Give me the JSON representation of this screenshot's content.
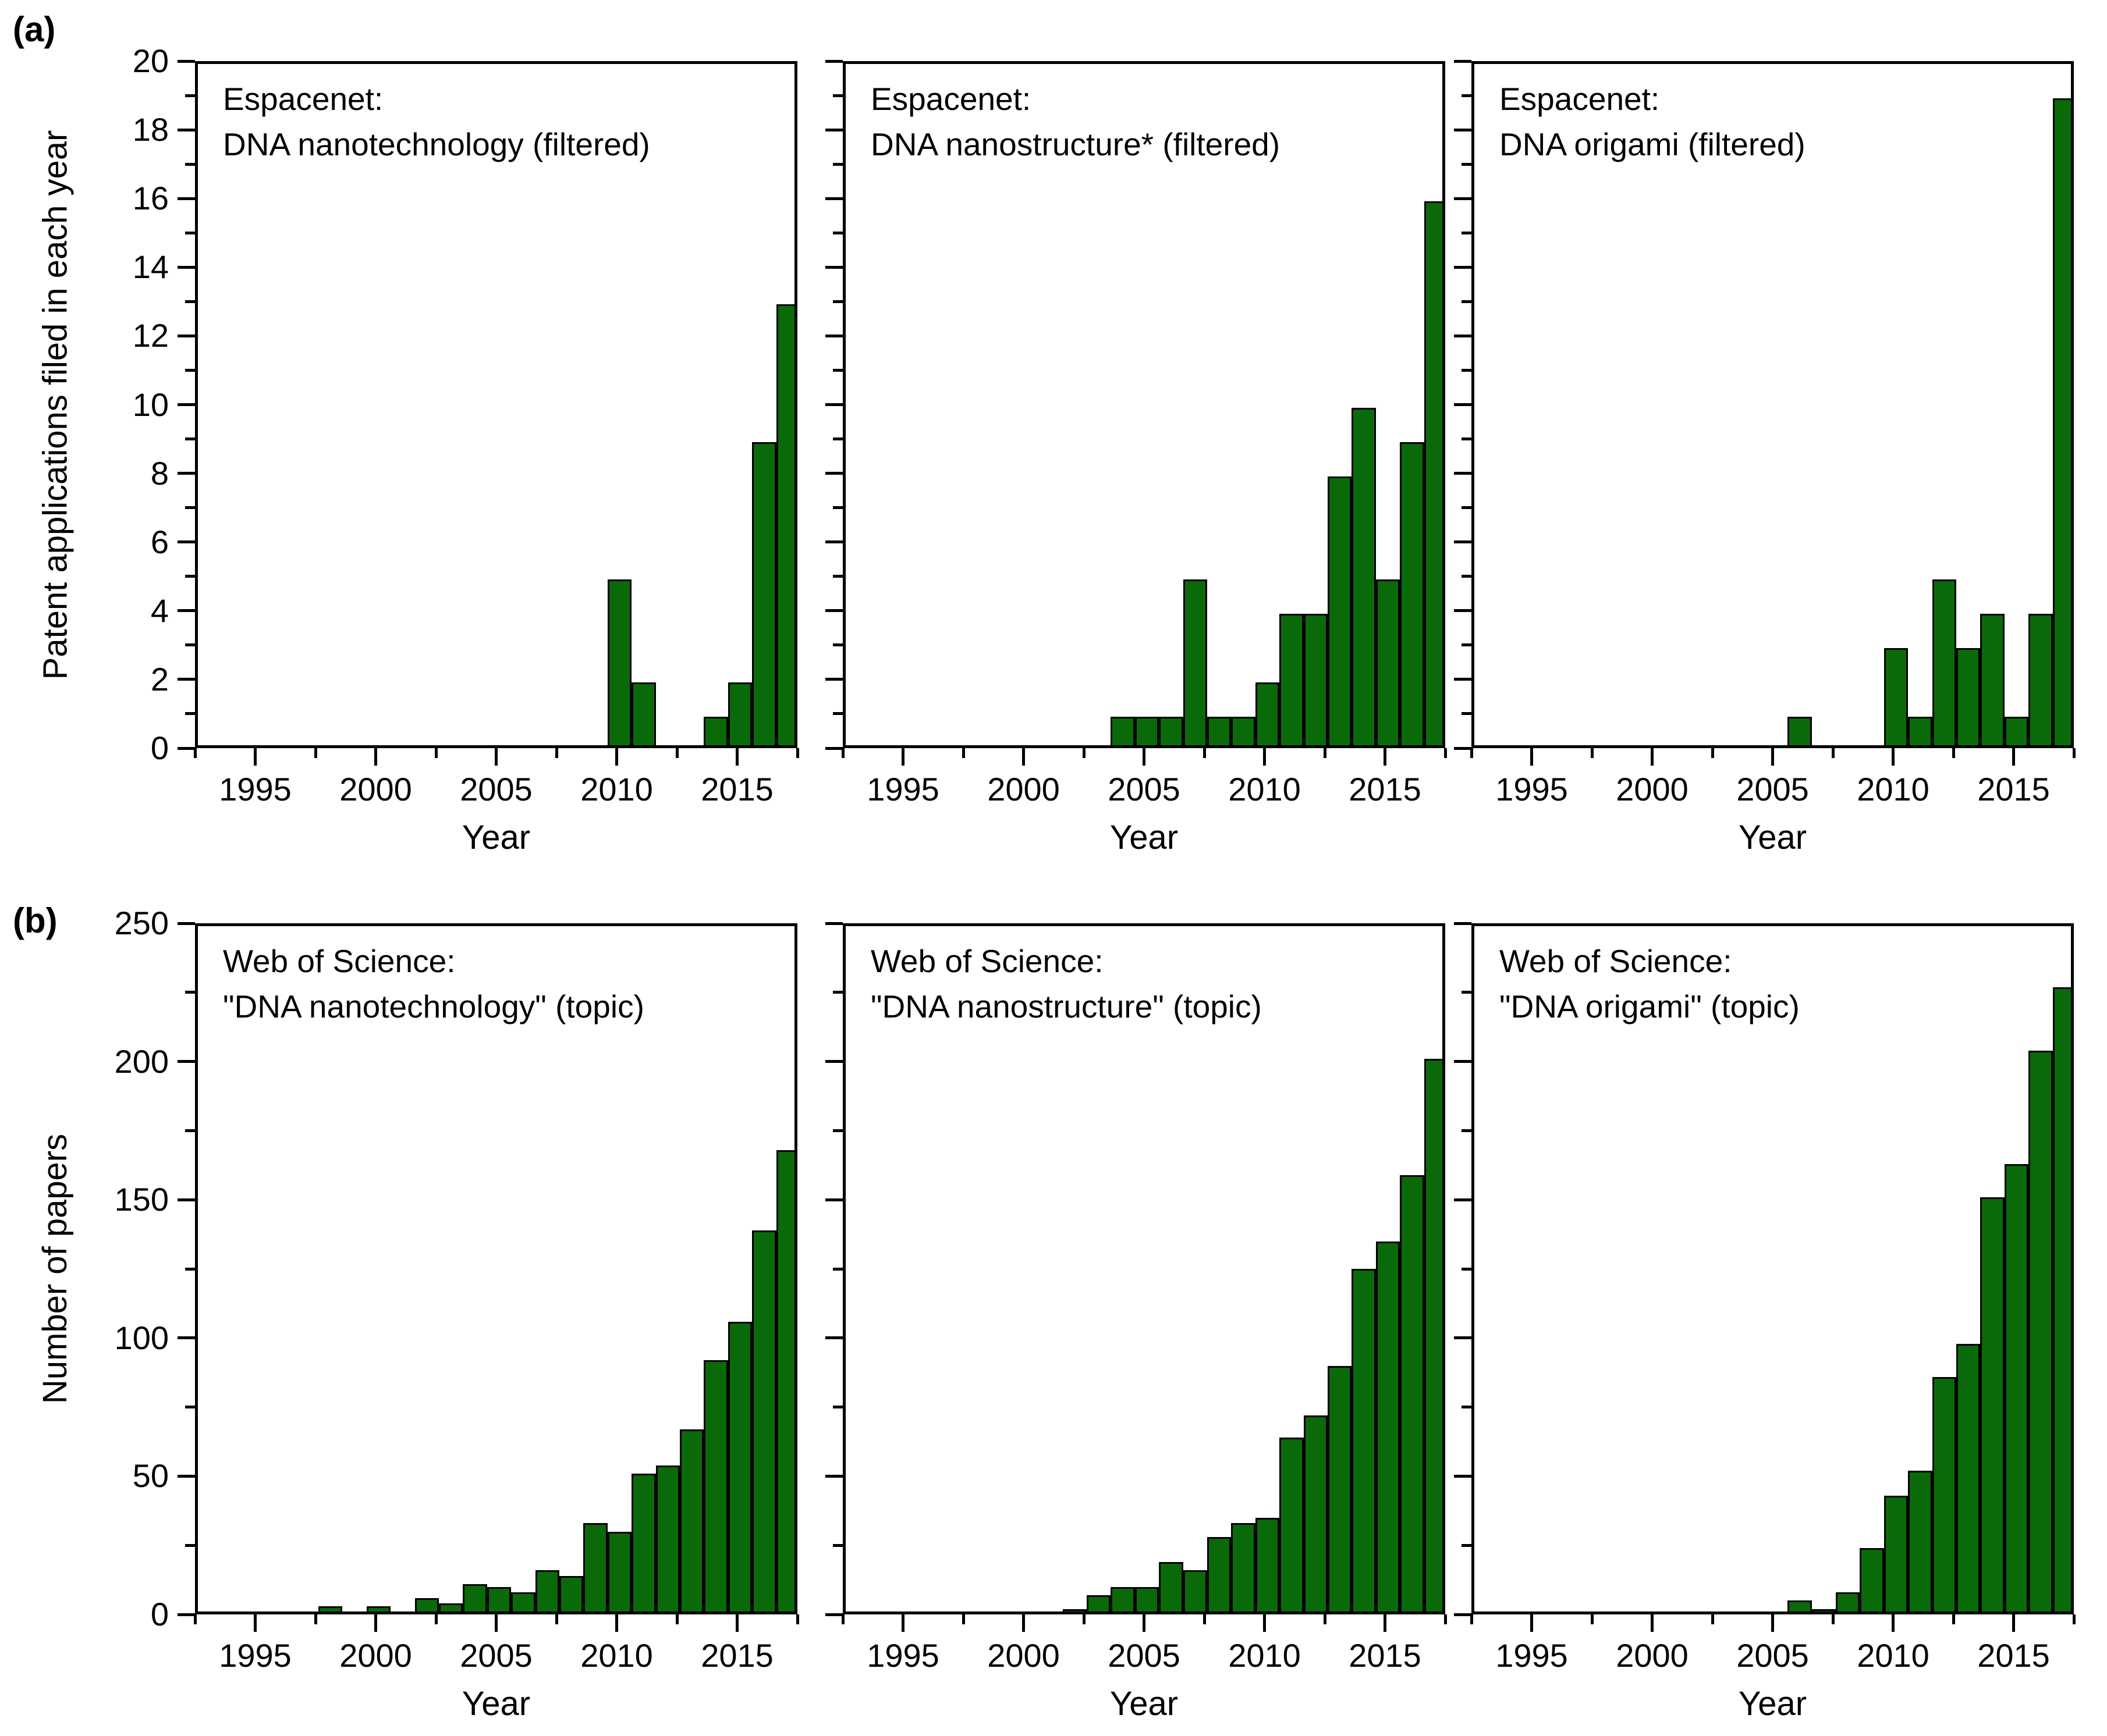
{
  "figure": {
    "panel_a_label": "(a)",
    "panel_b_label": "(b)",
    "background": "#ffffff"
  },
  "style": {
    "bar_fill": "#0a6a0a",
    "bar_stroke": "#000000",
    "axis_color": "#000000",
    "text_color": "#000000"
  },
  "xaxis": {
    "label": "Year",
    "lim": [
      1992.5,
      2017.5
    ],
    "tick_values": [
      1995,
      2000,
      2005,
      2010,
      2015
    ],
    "tick_labels": [
      "1995",
      "2000",
      "2005",
      "2010",
      "2015"
    ],
    "minor_values": [
      1992.5,
      1997.5,
      2002.5,
      2007.5,
      2012.5,
      2017.5
    ]
  },
  "rows": [
    {
      "id": "a",
      "ylabel": "Patent applications filed in each year",
      "ylim": [
        0,
        20
      ],
      "ytick_values": [
        0,
        2,
        4,
        6,
        8,
        10,
        12,
        14,
        16,
        18,
        20
      ],
      "ytick_labels": [
        "0",
        "2",
        "4",
        "6",
        "8",
        "10",
        "12",
        "14",
        "16",
        "18",
        "20"
      ],
      "yminor_values": [
        1,
        3,
        5,
        7,
        9,
        11,
        13,
        15,
        17,
        19
      ]
    },
    {
      "id": "b",
      "ylabel": "Number of papers",
      "ylim": [
        0,
        250
      ],
      "ytick_values": [
        0,
        50,
        100,
        150,
        200,
        250
      ],
      "ytick_labels": [
        "0",
        "50",
        "100",
        "150",
        "200",
        "250"
      ],
      "yminor_values": [
        25,
        75,
        125,
        175,
        225
      ]
    }
  ],
  "chart_data": [
    {
      "id": "a1",
      "type": "bar",
      "row": 0,
      "col": 0,
      "source": "Espacenet:",
      "query": "DNA nanotechnology (filtered)",
      "xlabel": "Year",
      "ylabel": "Patent applications filed in each year",
      "xlim": [
        1992.5,
        2017.5
      ],
      "ylim": [
        0,
        20
      ],
      "grid": false,
      "years": [
        2010,
        2011,
        2014,
        2015,
        2016,
        2017
      ],
      "values": [
        5,
        2,
        1,
        2,
        9,
        13
      ]
    },
    {
      "id": "a2",
      "type": "bar",
      "row": 0,
      "col": 1,
      "source": "Espacenet:",
      "query": "DNA nanostructure* (filtered)",
      "xlabel": "Year",
      "ylabel": "Patent applications filed in each year",
      "xlim": [
        1992.5,
        2017.5
      ],
      "ylim": [
        0,
        20
      ],
      "grid": false,
      "years": [
        2004,
        2005,
        2006,
        2007,
        2008,
        2009,
        2010,
        2011,
        2012,
        2013,
        2014,
        2015,
        2016,
        2017
      ],
      "values": [
        1,
        1,
        1,
        5,
        1,
        1,
        2,
        4,
        4,
        8,
        10,
        5,
        9,
        16
      ]
    },
    {
      "id": "a3",
      "type": "bar",
      "row": 0,
      "col": 2,
      "source": "Espacenet:",
      "query": "DNA origami (filtered)",
      "xlabel": "Year",
      "ylabel": "Patent applications filed in each year",
      "xlim": [
        1992.5,
        2017.5
      ],
      "ylim": [
        0,
        20
      ],
      "grid": false,
      "years": [
        2006,
        2010,
        2011,
        2012,
        2013,
        2014,
        2015,
        2016,
        2017
      ],
      "values": [
        1,
        3,
        1,
        5,
        3,
        4,
        1,
        4,
        19
      ]
    },
    {
      "id": "b1",
      "type": "bar",
      "row": 1,
      "col": 0,
      "source": "Web of Science:",
      "query": "\"DNA nanotechnology\" (topic)",
      "xlabel": "Year",
      "ylabel": "Number of papers",
      "xlim": [
        1992.5,
        2017.5
      ],
      "ylim": [
        0,
        250
      ],
      "grid": false,
      "years": [
        1996,
        1998,
        1999,
        2000,
        2001,
        2002,
        2003,
        2004,
        2005,
        2006,
        2007,
        2008,
        2009,
        2010,
        2011,
        2012,
        2013,
        2014,
        2015,
        2016,
        2017
      ],
      "values": [
        1,
        4,
        2,
        4,
        2,
        7,
        5,
        12,
        11,
        9,
        17,
        15,
        34,
        31,
        52,
        55,
        68,
        93,
        107,
        140,
        169
      ]
    },
    {
      "id": "b2",
      "type": "bar",
      "row": 1,
      "col": 1,
      "source": "Web of Science:",
      "query": "\"DNA nanostructure\" (topic)",
      "xlabel": "Year",
      "ylabel": "Number of papers",
      "xlim": [
        1992.5,
        2017.5
      ],
      "ylim": [
        0,
        250
      ],
      "grid": false,
      "years": [
        1995,
        1999,
        2000,
        2001,
        2002,
        2003,
        2004,
        2005,
        2006,
        2007,
        2008,
        2009,
        2010,
        2011,
        2012,
        2013,
        2014,
        2015,
        2016,
        2017
      ],
      "values": [
        1,
        1,
        2,
        1,
        3,
        8,
        11,
        11,
        20,
        17,
        29,
        34,
        36,
        65,
        73,
        91,
        126,
        136,
        160,
        202
      ]
    },
    {
      "id": "b3",
      "type": "bar",
      "row": 1,
      "col": 2,
      "source": "Web of Science:",
      "query": "\"DNA origami\" (topic)",
      "xlabel": "Year",
      "ylabel": "Number of papers",
      "xlim": [
        1992.5,
        2017.5
      ],
      "ylim": [
        0,
        250
      ],
      "grid": false,
      "years": [
        2005,
        2006,
        2007,
        2008,
        2009,
        2010,
        2011,
        2012,
        2013,
        2014,
        2015,
        2016,
        2017
      ],
      "values": [
        1,
        6,
        3,
        9,
        25,
        44,
        53,
        87,
        99,
        152,
        164,
        205,
        228
      ]
    }
  ]
}
